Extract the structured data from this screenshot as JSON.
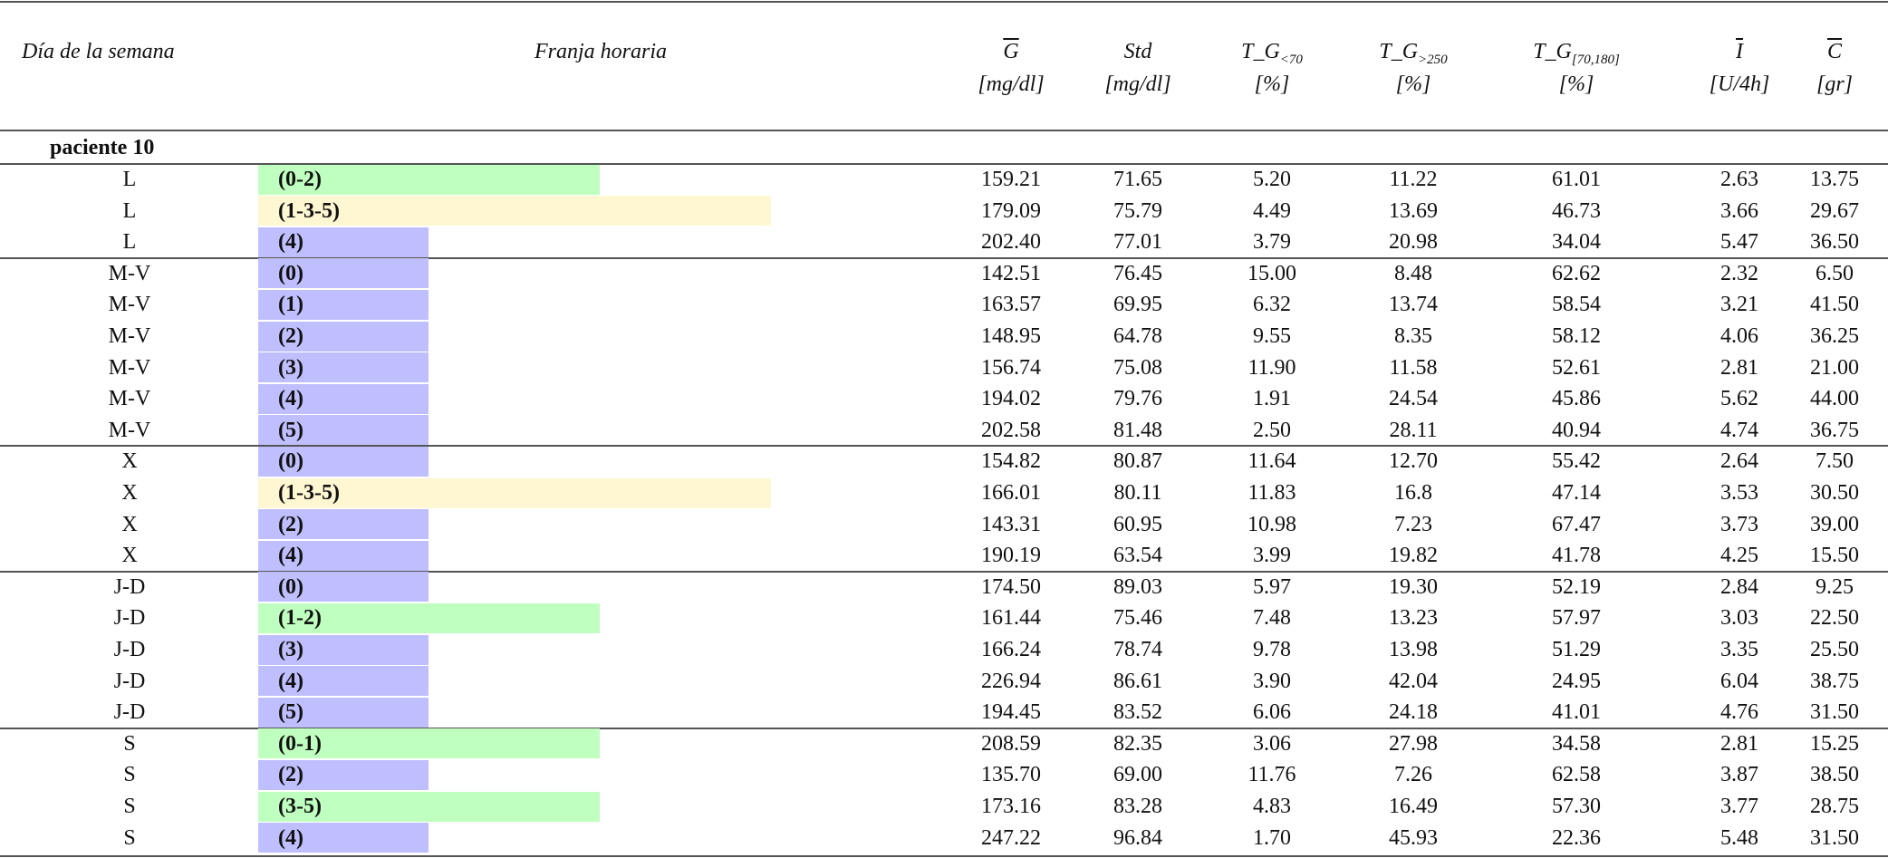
{
  "header": {
    "columns": [
      {
        "label": "Día de la semana"
      },
      {
        "label": "Franja horaria"
      },
      {
        "symbol": "G",
        "overline": true,
        "unit": "[mg/dl]"
      },
      {
        "symbol": "Std",
        "unit": "[mg/dl]"
      },
      {
        "symbol": "T_G",
        "sub": "<70",
        "unit": "[%]"
      },
      {
        "symbol": "T_G",
        "sub": ">250",
        "unit": "[%]"
      },
      {
        "symbol": "T_G",
        "sub": "[70,180]",
        "unit": "[%]"
      },
      {
        "symbol": "I",
        "overline": true,
        "unit": "[U/4h]"
      },
      {
        "symbol": "C",
        "overline": true,
        "unit": "[gr]"
      }
    ]
  },
  "section": "paciente 10",
  "groups": [
    {
      "rows": [
        {
          "day": "L",
          "franja": "(0-2)",
          "color": "#bfffbf",
          "values": [
            "159.21",
            "71.65",
            "5.20",
            "11.22",
            "61.01",
            "2.63",
            "13.75"
          ]
        },
        {
          "day": "L",
          "franja": "(1-3-5)",
          "color": "#fff6d2",
          "values": [
            "179.09",
            "75.79",
            "4.49",
            "13.69",
            "46.73",
            "3.66",
            "29.67"
          ]
        },
        {
          "day": "L",
          "franja": "(4)",
          "color": "#bfbfff",
          "values": [
            "202.40",
            "77.01",
            "3.79",
            "20.98",
            "34.04",
            "5.47",
            "36.50"
          ]
        }
      ]
    },
    {
      "rows": [
        {
          "day": "M-V",
          "franja": "(0)",
          "color": "#bfbfff",
          "values": [
            "142.51",
            "76.45",
            "15.00",
            "8.48",
            "62.62",
            "2.32",
            "6.50"
          ]
        },
        {
          "day": "M-V",
          "franja": "(1)",
          "color": "#bfbfff",
          "values": [
            "163.57",
            "69.95",
            "6.32",
            "13.74",
            "58.54",
            "3.21",
            "41.50"
          ]
        },
        {
          "day": "M-V",
          "franja": "(2)",
          "color": "#bfbfff",
          "values": [
            "148.95",
            "64.78",
            "9.55",
            "8.35",
            "58.12",
            "4.06",
            "36.25"
          ]
        },
        {
          "day": "M-V",
          "franja": "(3)",
          "color": "#bfbfff",
          "values": [
            "156.74",
            "75.08",
            "11.90",
            "11.58",
            "52.61",
            "2.81",
            "21.00"
          ]
        },
        {
          "day": "M-V",
          "franja": "(4)",
          "color": "#bfbfff",
          "values": [
            "194.02",
            "79.76",
            "1.91",
            "24.54",
            "45.86",
            "5.62",
            "44.00"
          ]
        },
        {
          "day": "M-V",
          "franja": "(5)",
          "color": "#bfbfff",
          "values": [
            "202.58",
            "81.48",
            "2.50",
            "28.11",
            "40.94",
            "4.74",
            "36.75"
          ]
        }
      ]
    },
    {
      "rows": [
        {
          "day": "X",
          "franja": "(0)",
          "color": "#bfbfff",
          "values": [
            "154.82",
            "80.87",
            "11.64",
            "12.70",
            "55.42",
            "2.64",
            "7.50"
          ]
        },
        {
          "day": "X",
          "franja": "(1-3-5)",
          "color": "#fff6d2",
          "values": [
            "166.01",
            "80.11",
            "11.83",
            "16.8",
            "47.14",
            "3.53",
            "30.50"
          ]
        },
        {
          "day": "X",
          "franja": "(2)",
          "color": "#bfbfff",
          "values": [
            "143.31",
            "60.95",
            "10.98",
            "7.23",
            "67.47",
            "3.73",
            "39.00"
          ]
        },
        {
          "day": "X",
          "franja": "(4)",
          "color": "#bfbfff",
          "values": [
            "190.19",
            "63.54",
            "3.99",
            "19.82",
            "41.78",
            "4.25",
            "15.50"
          ]
        }
      ]
    },
    {
      "rows": [
        {
          "day": "J-D",
          "franja": "(0)",
          "color": "#bfbfff",
          "values": [
            "174.50",
            "89.03",
            "5.97",
            "19.30",
            "52.19",
            "2.84",
            "9.25"
          ]
        },
        {
          "day": "J-D",
          "franja": "(1-2)",
          "color": "#bfffbf",
          "values": [
            "161.44",
            "75.46",
            "7.48",
            "13.23",
            "57.97",
            "3.03",
            "22.50"
          ]
        },
        {
          "day": "J-D",
          "franja": "(3)",
          "color": "#bfbfff",
          "values": [
            "166.24",
            "78.74",
            "9.78",
            "13.98",
            "51.29",
            "3.35",
            "25.50"
          ]
        },
        {
          "day": "J-D",
          "franja": "(4)",
          "color": "#bfbfff",
          "values": [
            "226.94",
            "86.61",
            "3.90",
            "42.04",
            "24.95",
            "6.04",
            "38.75"
          ]
        },
        {
          "day": "J-D",
          "franja": "(5)",
          "color": "#bfbfff",
          "values": [
            "194.45",
            "83.52",
            "6.06",
            "24.18",
            "41.01",
            "4.76",
            "31.50"
          ]
        }
      ]
    },
    {
      "rows": [
        {
          "day": "S",
          "franja": "(0-1)",
          "color": "#bfffbf",
          "values": [
            "208.59",
            "82.35",
            "3.06",
            "27.98",
            "34.58",
            "2.81",
            "15.25"
          ]
        },
        {
          "day": "S",
          "franja": "(2)",
          "color": "#bfbfff",
          "values": [
            "135.70",
            "69.00",
            "11.76",
            "7.26",
            "62.58",
            "3.87",
            "38.50"
          ]
        },
        {
          "day": "S",
          "franja": "(3-5)",
          "color": "#bfffbf",
          "values": [
            "173.16",
            "83.28",
            "4.83",
            "16.49",
            "57.30",
            "3.77",
            "28.75"
          ]
        },
        {
          "day": "S",
          "franja": "(4)",
          "color": "#bfbfff",
          "values": [
            "247.22",
            "96.84",
            "1.70",
            "45.93",
            "22.36",
            "5.48",
            "31.50"
          ]
        }
      ]
    }
  ]
}
